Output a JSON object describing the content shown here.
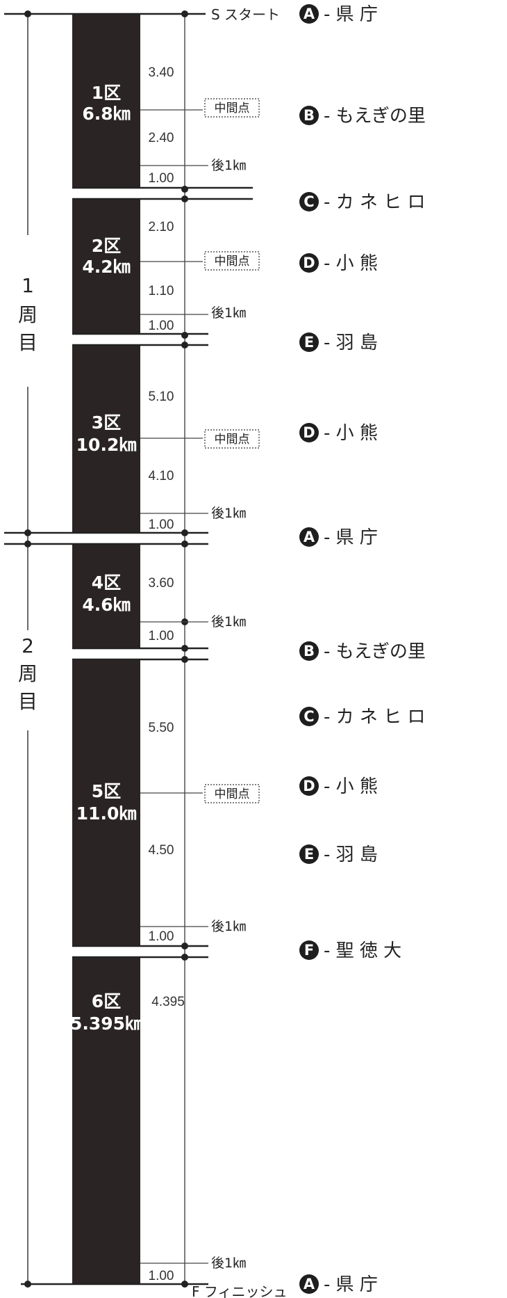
{
  "start_label": "S スタート",
  "finish_label": "F フィニッシュ",
  "laps": [
    {
      "label": [
        "1",
        "周",
        "目"
      ]
    },
    {
      "label": [
        "2",
        "周",
        "目"
      ]
    }
  ],
  "segments": [
    {
      "name": "1区",
      "distance": "6.8㎞",
      "subs": [
        "3.40",
        "2.40",
        "1.00"
      ],
      "midpoint": "中間点",
      "last1km": "後1㎞"
    },
    {
      "name": "2区",
      "distance": "4.2㎞",
      "subs": [
        "2.10",
        "1.10",
        "1.00"
      ],
      "midpoint": "中間点",
      "last1km": "後1㎞"
    },
    {
      "name": "3区",
      "distance": "10.2㎞",
      "subs": [
        "5.10",
        "4.10",
        "1.00"
      ],
      "midpoint": "中間点",
      "last1km": "後1㎞"
    },
    {
      "name": "4区",
      "distance": "4.6㎞",
      "subs": [
        "3.60",
        "1.00"
      ],
      "last1km": "後1㎞"
    },
    {
      "name": "5区",
      "distance": "11.0㎞",
      "subs": [
        "5.50",
        "4.50",
        "1.00"
      ],
      "midpoint": "中間点",
      "last1km": "後1㎞"
    },
    {
      "name": "6区",
      "distance": "5.395㎞",
      "subs": [
        "4.395",
        "1.00"
      ],
      "last1km": "後1㎞"
    }
  ],
  "checkpoints": [
    {
      "letter": "A",
      "name": "- 県 庁"
    },
    {
      "letter": "B",
      "name": "- もえぎの里"
    },
    {
      "letter": "C",
      "name": "- カ ネ ヒ ロ"
    },
    {
      "letter": "D",
      "name": "- 小 熊"
    },
    {
      "letter": "E",
      "name": "- 羽 島"
    },
    {
      "letter": "D",
      "name": "- 小 熊"
    },
    {
      "letter": "A",
      "name": "- 県 庁"
    },
    {
      "letter": "B",
      "name": "- もえぎの里"
    },
    {
      "letter": "C",
      "name": "- カ ネ ヒ ロ"
    },
    {
      "letter": "D",
      "name": "- 小 熊"
    },
    {
      "letter": "E",
      "name": "- 羽 島"
    },
    {
      "letter": "F",
      "name": "- 聖 徳 大"
    },
    {
      "letter": "A",
      "name": "- 県 庁"
    }
  ]
}
